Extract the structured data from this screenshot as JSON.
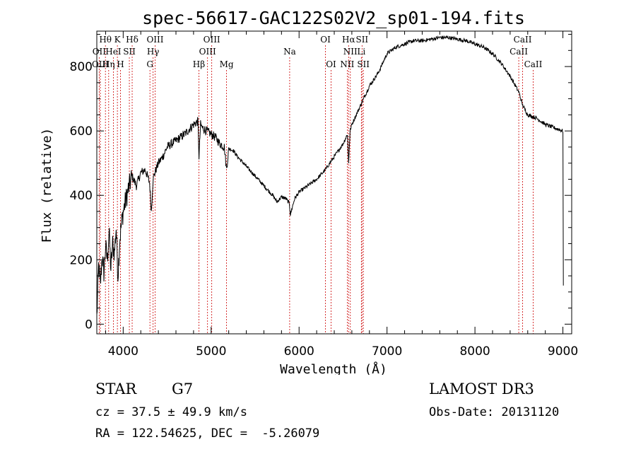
{
  "chart_data": {
    "type": "line",
    "title": "spec-56617-GAC122S02V2_sp01-194.fits",
    "xlabel": "Wavelength (Å)",
    "ylabel": "Flux (relative)",
    "xlim": [
      3700,
      9100
    ],
    "ylim": [
      -30,
      910
    ],
    "x_ticks": [
      4000,
      5000,
      6000,
      7000,
      8000,
      9000
    ],
    "y_ticks": [
      0,
      200,
      400,
      600,
      800
    ],
    "series": [
      {
        "name": "spectrum",
        "x": [
          3700,
          3720,
          3740,
          3760,
          3780,
          3800,
          3820,
          3840,
          3860,
          3880,
          3900,
          3920,
          3940,
          3960,
          3980,
          4000,
          4050,
          4100,
          4150,
          4200,
          4250,
          4300,
          4320,
          4340,
          4360,
          4400,
          4450,
          4500,
          4600,
          4700,
          4800,
          4850,
          4862,
          4880,
          4900,
          4950,
          5000,
          5050,
          5100,
          5150,
          5175,
          5200,
          5250,
          5300,
          5400,
          5500,
          5600,
          5700,
          5750,
          5800,
          5850,
          5890,
          5900,
          5950,
          6000,
          6100,
          6200,
          6300,
          6400,
          6500,
          6550,
          6563,
          6580,
          6600,
          6650,
          6700,
          6750,
          6800,
          6900,
          7000,
          7100,
          7200,
          7300,
          7400,
          7500,
          7600,
          7700,
          7800,
          7900,
          8000,
          8100,
          8200,
          8300,
          8400,
          8500,
          8542,
          8600,
          8700,
          8800,
          8900,
          9000,
          9005
        ],
        "y": [
          20,
          180,
          120,
          210,
          160,
          240,
          200,
          290,
          170,
          250,
          220,
          300,
          150,
          260,
          310,
          350,
          410,
          460,
          430,
          470,
          480,
          440,
          350,
          450,
          470,
          500,
          520,
          550,
          570,
          590,
          620,
          630,
          520,
          620,
          610,
          600,
          590,
          580,
          560,
          550,
          480,
          545,
          540,
          520,
          490,
          460,
          430,
          400,
          380,
          395,
          390,
          375,
          340,
          390,
          410,
          430,
          450,
          480,
          520,
          560,
          590,
          500,
          600,
          620,
          650,
          680,
          710,
          740,
          780,
          840,
          860,
          870,
          880,
          880,
          885,
          890,
          890,
          885,
          880,
          870,
          860,
          840,
          810,
          770,
          720,
          680,
          650,
          640,
          620,
          610,
          600,
          120
        ]
      }
    ],
    "spectral_lines": [
      {
        "label": "Hθ",
        "wavelength": 3798,
        "row": 0
      },
      {
        "label": "OII",
        "wavelength": 3727,
        "row": 1
      },
      {
        "label": "OIII",
        "wavelength": 3740,
        "row": 2
      },
      {
        "label": "Hη",
        "wavelength": 3835,
        "row": 2
      },
      {
        "label": "HeI",
        "wavelength": 3888,
        "row": 1
      },
      {
        "label": "K",
        "wavelength": 3934,
        "row": 0
      },
      {
        "label": "SII",
        "wavelength": 4070,
        "row": 1
      },
      {
        "label": "H",
        "wavelength": 3969,
        "row": 2
      },
      {
        "label": "Hδ",
        "wavelength": 4102,
        "row": 0
      },
      {
        "label": "OIII",
        "wavelength": 4363,
        "row": 0
      },
      {
        "label": "Hγ",
        "wavelength": 4340,
        "row": 1
      },
      {
        "label": "G",
        "wavelength": 4304,
        "row": 2
      },
      {
        "label": "Hβ",
        "wavelength": 4861,
        "row": 2
      },
      {
        "label": "OIII",
        "wavelength": 5007,
        "row": 0
      },
      {
        "label": "OIII",
        "wavelength": 4959,
        "row": 1
      },
      {
        "label": "Mg",
        "wavelength": 5175,
        "row": 2
      },
      {
        "label": "Na",
        "wavelength": 5893,
        "row": 1
      },
      {
        "label": "OI",
        "wavelength": 6300,
        "row": 0
      },
      {
        "label": "OI",
        "wavelength": 6364,
        "row": 2
      },
      {
        "label": "Hα",
        "wavelength": 6563,
        "row": 0
      },
      {
        "label": "SII",
        "wavelength": 6716,
        "row": 0
      },
      {
        "label": "NII",
        "wavelength": 6583,
        "row": 1
      },
      {
        "label": "Li",
        "wavelength": 6708,
        "row": 1
      },
      {
        "label": "NII",
        "wavelength": 6548,
        "row": 2
      },
      {
        "label": "SII",
        "wavelength": 6731,
        "row": 2
      },
      {
        "label": "CaII",
        "wavelength": 8542,
        "row": 0
      },
      {
        "label": "CaII",
        "wavelength": 8498,
        "row": 1
      },
      {
        "label": "CaII",
        "wavelength": 8662,
        "row": 2
      }
    ]
  },
  "info": {
    "class": "STAR",
    "subclass": "G7",
    "survey": "LAMOST DR3",
    "cz": "cz = 37.5 ± 49.9 km/s",
    "obs_date": "Obs-Date: 20131120",
    "coords": "RA = 122.54625, DEC =  -5.26079"
  },
  "colors": {
    "line_marker": "#cc0000",
    "spectrum": "#000000"
  }
}
